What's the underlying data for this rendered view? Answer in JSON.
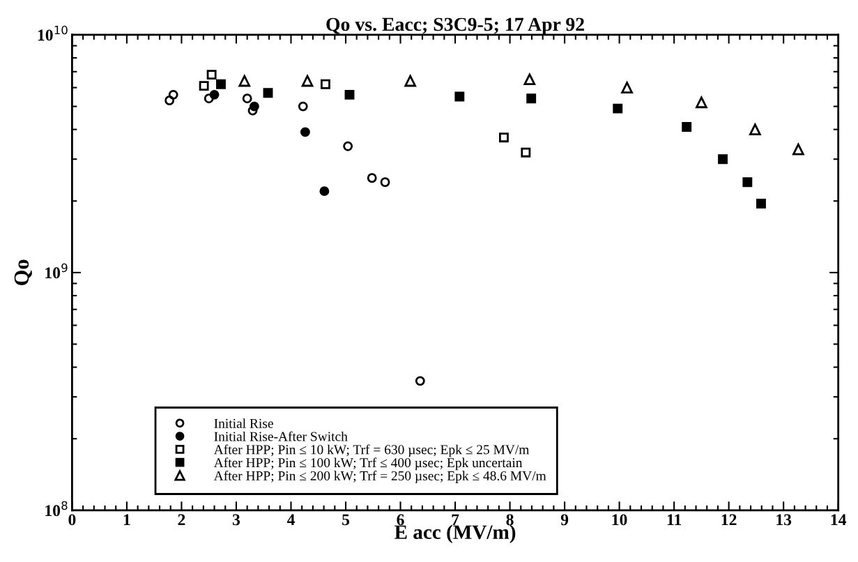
{
  "chart_data": {
    "type": "scatter",
    "title": "Qo vs. Eacc; S3C9-5; 17 Apr 92",
    "xlabel": "E acc (MV/m)",
    "ylabel": "Qo",
    "log": "y",
    "xlim": [
      0,
      14
    ],
    "xticks": [
      0,
      1,
      2,
      3,
      4,
      5,
      6,
      7,
      8,
      9,
      10,
      11,
      12,
      13,
      14
    ],
    "ylim": [
      100000000,
      10000000000
    ],
    "yticks": [
      {
        "value": 100000000,
        "label": "10$^{8}$"
      },
      {
        "value": 1000000000,
        "label": "10$^{9}$"
      },
      {
        "value": 10000000000,
        "label": "10$^{10}$"
      }
    ],
    "grid": false,
    "legend": "bottom left",
    "series": [
      {
        "name": "Initial Rise",
        "color": "#000000",
        "marker": "circle-open",
        "x": [
          1.78,
          1.85,
          2.5,
          3.2,
          3.3,
          4.22,
          5.04,
          5.48,
          5.72,
          6.36
        ],
        "values": [
          5300000000.0,
          5600000000.0,
          5400000000.0,
          5400000000.0,
          4800000000.0,
          5000000000.0,
          3400000000.0,
          2500000000.0,
          2400000000.0,
          350000000.0
        ]
      },
      {
        "name": "Initial Rise-After Switch",
        "color": "#000000",
        "marker": "circle",
        "x": [
          2.6,
          3.33,
          4.26,
          4.61
        ],
        "values": [
          5600000000.0,
          5000000000.0,
          3900000000.0,
          2200000000.0
        ]
      },
      {
        "name": "After HPP; Pin ≤ 10 kW; Trf = 630 µsec; Epk ≤ 25 MV/m",
        "color": "#000000",
        "marker": "square-open",
        "x": [
          2.41,
          2.55,
          4.63,
          7.89,
          8.29
        ],
        "values": [
          6100000000.0,
          6800000000.0,
          6200000000.0,
          3700000000.0,
          3200000000.0
        ]
      },
      {
        "name": "After HPP; Pin ≤ 100 kW; Trf ≤ 400 µsec; Epk uncertain",
        "color": "#000000",
        "marker": "square",
        "x": [
          2.72,
          3.58,
          5.07,
          7.08,
          8.39,
          9.97,
          11.23,
          11.89,
          12.34,
          12.59
        ],
        "values": [
          6200000000.0,
          5700000000.0,
          5600000000.0,
          5500000000.0,
          5400000000.0,
          4900000000.0,
          4100000000.0,
          3000000000.0,
          2400000000.0,
          1950000000.0
        ]
      },
      {
        "name": "After HPP; Pin ≤ 200 kW; Trf = 250 µsec; Epk ≤ 48.6 MV/m",
        "color": "#000000",
        "marker": "triangle-open",
        "x": [
          3.15,
          4.3,
          6.18,
          8.36,
          10.14,
          11.5,
          12.48,
          13.27
        ],
        "values": [
          6400000000.0,
          6400000000.0,
          6400000000.0,
          6500000000.0,
          6000000000.0,
          5200000000.0,
          4000000000.0,
          3300000000.0
        ]
      }
    ]
  }
}
